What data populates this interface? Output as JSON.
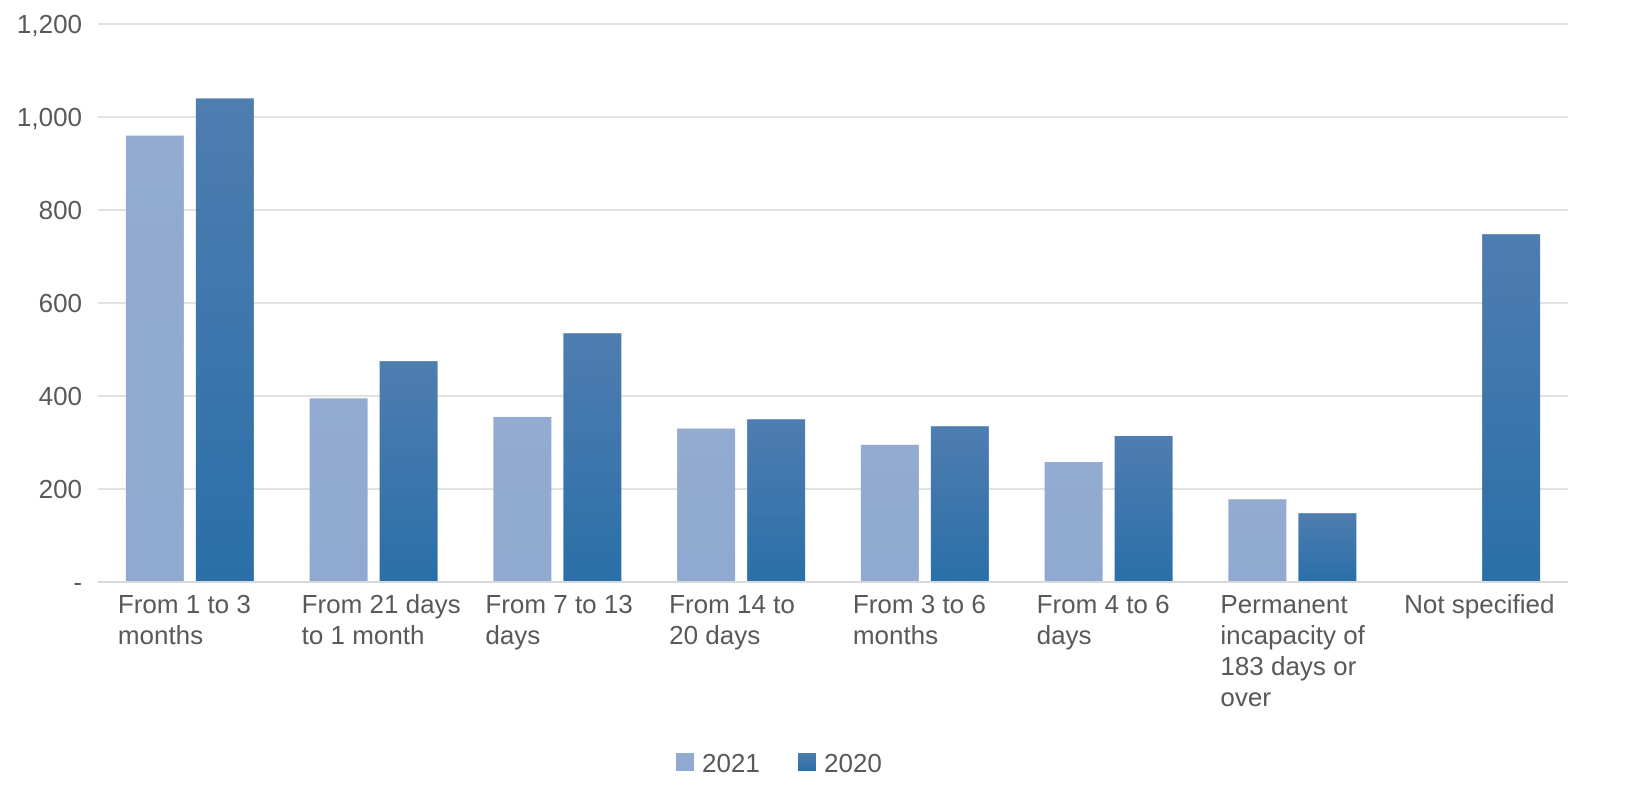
{
  "chart_data": {
    "type": "bar",
    "categories": [
      "From 1 to 3 months",
      "From 21 days to 1 month",
      "From 7 to 13 days",
      "From 14 to 20 days",
      "From 3 to 6 months",
      "From 4 to 6 days",
      "Permanent incapacity of 183 days or over",
      "Not specified"
    ],
    "category_label_lines": [
      [
        "From 1 to 3",
        "months"
      ],
      [
        "From 21 days",
        "to 1 month"
      ],
      [
        "From 7 to 13",
        "days"
      ],
      [
        "From 14 to",
        "20 days"
      ],
      [
        "From 3 to 6",
        "months"
      ],
      [
        "From 4 to 6",
        "days"
      ],
      [
        "Permanent",
        "incapacity of",
        "183 days or",
        "over"
      ],
      [
        "Not specified"
      ]
    ],
    "series": [
      {
        "name": "2021",
        "color_top": "#93abd0",
        "color_bottom": "#8fa9d0",
        "values": [
          960,
          395,
          355,
          330,
          295,
          258,
          178,
          2
        ]
      },
      {
        "name": "2020",
        "color_top": "#4f7db0",
        "color_bottom": "#2a6fa8",
        "values": [
          1040,
          475,
          535,
          350,
          335,
          314,
          148,
          748
        ]
      }
    ],
    "ylim": [
      0,
      1200
    ],
    "yticks": [
      0,
      200,
      400,
      600,
      800,
      1000,
      1200
    ],
    "ytick_labels": [
      "-",
      "200",
      "400",
      "600",
      "800",
      "1,000",
      "1,200"
    ],
    "title": "",
    "xlabel": "",
    "ylabel": "",
    "grid": true,
    "legend_position": "bottom-center",
    "colors": {
      "grid": "#d9d9d9",
      "axis": "#d9d9d9",
      "text": "#595959"
    }
  }
}
